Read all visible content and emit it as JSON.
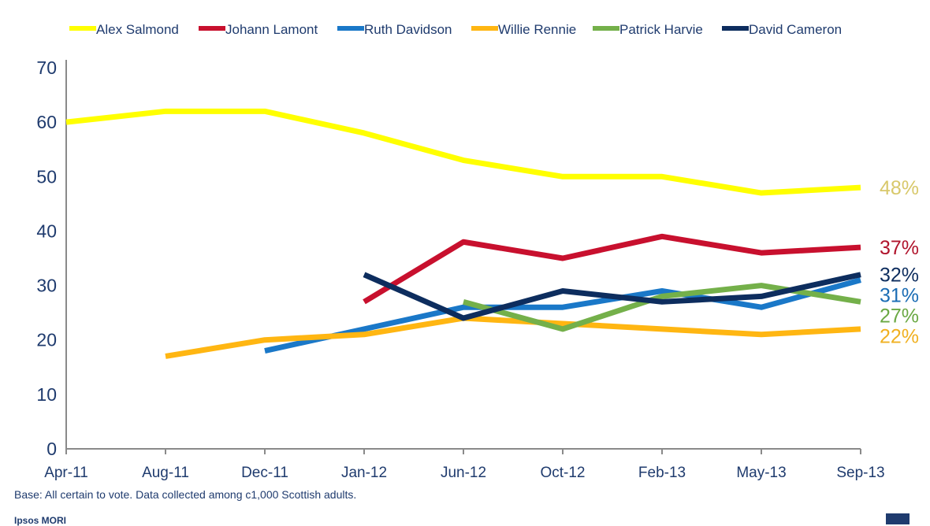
{
  "chart_data": {
    "type": "line",
    "categories": [
      "Apr-11",
      "Aug-11",
      "Dec-11",
      "Jan-12",
      "Jun-12",
      "Oct-12",
      "Feb-13",
      "May-13",
      "Sep-13"
    ],
    "ylim": [
      0,
      70
    ],
    "yticks": [
      0,
      10,
      20,
      30,
      40,
      50,
      60,
      70
    ],
    "grid": false,
    "legend_position": "top",
    "series": [
      {
        "name": "Alex Salmond",
        "color": "#ffff00",
        "label_color": "#d8c86a",
        "values": [
          60,
          62,
          62,
          58,
          53,
          50,
          50,
          47,
          48
        ],
        "end_label": "48%"
      },
      {
        "name": "Johann Lamont",
        "color": "#c8102e",
        "label_color": "#b0142c",
        "values": [
          null,
          null,
          null,
          27,
          38,
          35,
          39,
          36,
          37
        ],
        "end_label": "37%"
      },
      {
        "name": "Ruth Davidson",
        "color": "#1a78c8",
        "label_color": "#1a6cb4",
        "values": [
          null,
          null,
          18,
          22,
          26,
          26,
          29,
          26,
          31
        ],
        "end_label": "31%"
      },
      {
        "name": "Willie Rennie",
        "color": "#ffb612",
        "label_color": "#f0b020",
        "values": [
          null,
          17,
          20,
          21,
          24,
          23,
          22,
          21,
          22
        ],
        "end_label": "22%"
      },
      {
        "name": "Patrick Harvie",
        "color": "#74b04a",
        "label_color": "#6aa843",
        "values": [
          null,
          null,
          null,
          null,
          27,
          22,
          28,
          30,
          27
        ],
        "end_label": "27%"
      },
      {
        "name": "David Cameron",
        "color": "#0d2d5e",
        "label_color": "#0d2d5e",
        "values": [
          null,
          null,
          null,
          32,
          24,
          29,
          27,
          28,
          32
        ],
        "end_label": "32%"
      }
    ]
  },
  "footnote": "Base: All certain to vote. Data collected among c1,000 Scottish adults.",
  "brand": "Ipsos MORI"
}
